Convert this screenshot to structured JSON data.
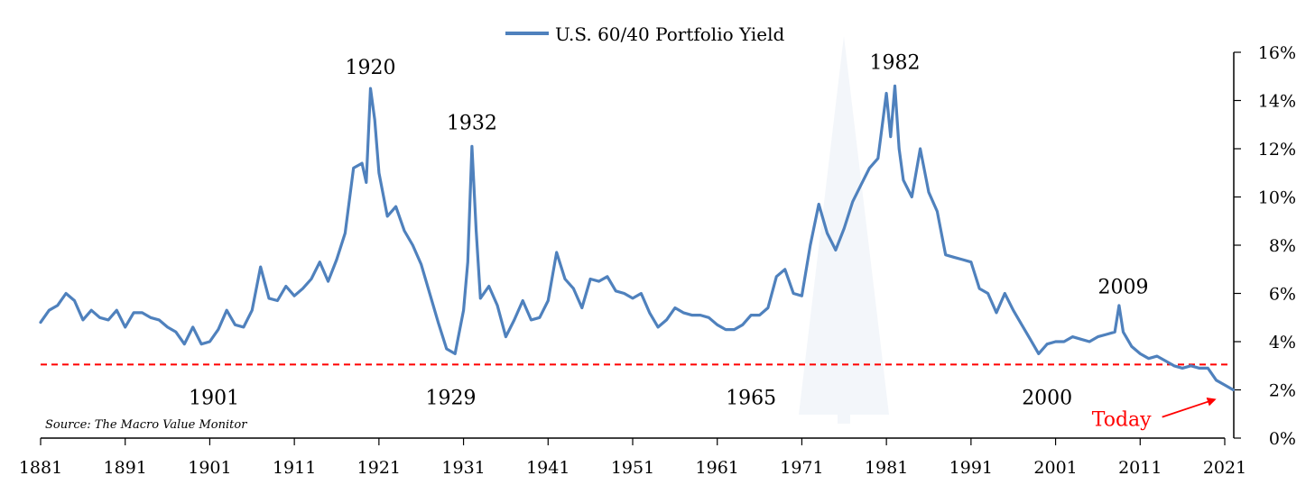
{
  "chart_data": {
    "type": "line",
    "title": "",
    "xlabel": "",
    "ylabel": "",
    "xlim": [
      1881,
      2023
    ],
    "ylim": [
      0,
      16
    ],
    "x_ticks": [
      "1881",
      "1891",
      "1901",
      "1911",
      "1921",
      "1931",
      "1941",
      "1951",
      "1961",
      "1971",
      "1981",
      "1991",
      "2001",
      "2011",
      "2021"
    ],
    "y_ticks": [
      "0%",
      "2%",
      "4%",
      "6%",
      "8%",
      "10%",
      "12%",
      "14%",
      "16%"
    ],
    "y_axis_side": "right",
    "grid": false,
    "legend": {
      "placement": "top-center",
      "entries": [
        "U.S. 60/40 Portfolio Yield"
      ]
    },
    "series": [
      {
        "name": "U.S. 60/40 Portfolio Yield",
        "color": "#4f81bd",
        "x": [
          1881,
          1882,
          1883,
          1884,
          1885,
          1886,
          1887,
          1888,
          1889,
          1890,
          1891,
          1892,
          1893,
          1894,
          1895,
          1896,
          1897,
          1898,
          1899,
          1900,
          1901,
          1902,
          1903,
          1904,
          1905,
          1906,
          1907,
          1908,
          1909,
          1910,
          1911,
          1912,
          1913,
          1914,
          1915,
          1916,
          1917,
          1918,
          1919,
          1919.5,
          1920,
          1920.5,
          1921,
          1922,
          1923,
          1924,
          1925,
          1926,
          1927,
          1928,
          1929,
          1930,
          1931,
          1931.5,
          1932,
          1932.5,
          1933,
          1934,
          1935,
          1936,
          1937,
          1938,
          1939,
          1940,
          1941,
          1942,
          1943,
          1944,
          1945,
          1946,
          1947,
          1948,
          1949,
          1950,
          1951,
          1952,
          1953,
          1954,
          1955,
          1956,
          1957,
          1958,
          1959,
          1960,
          1961,
          1962,
          1963,
          1964,
          1965,
          1966,
          1967,
          1968,
          1969,
          1970,
          1971,
          1972,
          1973,
          1974,
          1975,
          1976,
          1977,
          1978,
          1979,
          1980,
          1981,
          1981.5,
          1982,
          1982.5,
          1983,
          1984,
          1985,
          1986,
          1987,
          1988,
          1989,
          1990,
          1991,
          1992,
          1993,
          1994,
          1995,
          1996,
          1997,
          1998,
          1999,
          2000,
          2001,
          2002,
          2003,
          2004,
          2005,
          2006,
          2007,
          2008,
          2008.5,
          2009,
          2010,
          2011,
          2012,
          2013,
          2014,
          2015,
          2016,
          2017,
          2018,
          2019,
          2020,
          2021,
          2022
        ],
        "values": [
          4.8,
          5.3,
          5.5,
          6.0,
          5.7,
          4.9,
          5.3,
          5.0,
          4.9,
          5.3,
          4.6,
          5.2,
          5.2,
          5.0,
          4.9,
          4.6,
          4.4,
          3.9,
          4.6,
          3.9,
          4.0,
          4.5,
          5.3,
          4.7,
          4.6,
          5.3,
          7.1,
          5.8,
          5.7,
          6.3,
          5.9,
          6.2,
          6.6,
          7.3,
          6.5,
          7.4,
          8.5,
          11.2,
          11.4,
          10.6,
          14.5,
          13.2,
          11.0,
          9.2,
          9.6,
          8.6,
          8.0,
          7.2,
          6.0,
          4.8,
          3.7,
          3.5,
          5.3,
          7.3,
          12.1,
          8.6,
          5.8,
          6.3,
          5.5,
          4.2,
          4.9,
          5.7,
          4.9,
          5.0,
          5.7,
          7.7,
          6.6,
          6.2,
          5.4,
          6.6,
          6.5,
          6.7,
          6.1,
          6.0,
          5.8,
          6.0,
          5.2,
          4.6,
          4.9,
          5.4,
          5.2,
          5.1,
          5.1,
          5.0,
          4.7,
          4.5,
          4.5,
          4.7,
          5.1,
          5.1,
          5.4,
          6.7,
          7.0,
          6.0,
          5.9,
          8.0,
          9.7,
          8.5,
          7.8,
          8.7,
          9.8,
          10.5,
          11.2,
          11.6,
          14.3,
          12.5,
          14.6,
          12.0,
          10.7,
          10.0,
          12.0,
          10.2,
          9.4,
          7.6,
          7.5,
          7.4,
          7.3,
          6.2,
          6.0,
          5.2,
          6.0,
          5.3,
          4.7,
          4.1,
          3.5,
          3.9,
          4.0,
          4.0,
          4.2,
          4.1,
          4.0,
          4.2,
          4.3,
          4.4,
          5.5,
          4.4,
          3.8,
          3.5,
          3.3,
          3.4,
          3.2,
          3.0,
          2.9,
          3.0,
          2.9,
          2.9,
          2.4,
          2.2,
          2.0
        ]
      }
    ],
    "reference_line": {
      "value": 3.05,
      "color": "#ff0000",
      "style": "dashed"
    },
    "annotations": [
      {
        "text": "1920",
        "x": 1920,
        "y": 15.1
      },
      {
        "text": "1932",
        "x": 1932,
        "y": 12.8
      },
      {
        "text": "1982",
        "x": 1982,
        "y": 15.3
      },
      {
        "text": "2009",
        "x": 2009,
        "y": 6.0
      },
      {
        "text": "1901",
        "x": 1901.5,
        "y": 1.4
      },
      {
        "text": "1929",
        "x": 1929.5,
        "y": 1.4
      },
      {
        "text": "1965",
        "x": 1965,
        "y": 1.4
      },
      {
        "text": "2000",
        "x": 2000,
        "y": 1.4
      }
    ],
    "callout": {
      "text": "Today",
      "color": "#ff0000",
      "label_x": 2008.8,
      "label_y": 0.5,
      "arrow_to_x": 2019.8,
      "arrow_to_y": 1.6
    },
    "source_note": "Source: The Macro Value Monitor"
  }
}
